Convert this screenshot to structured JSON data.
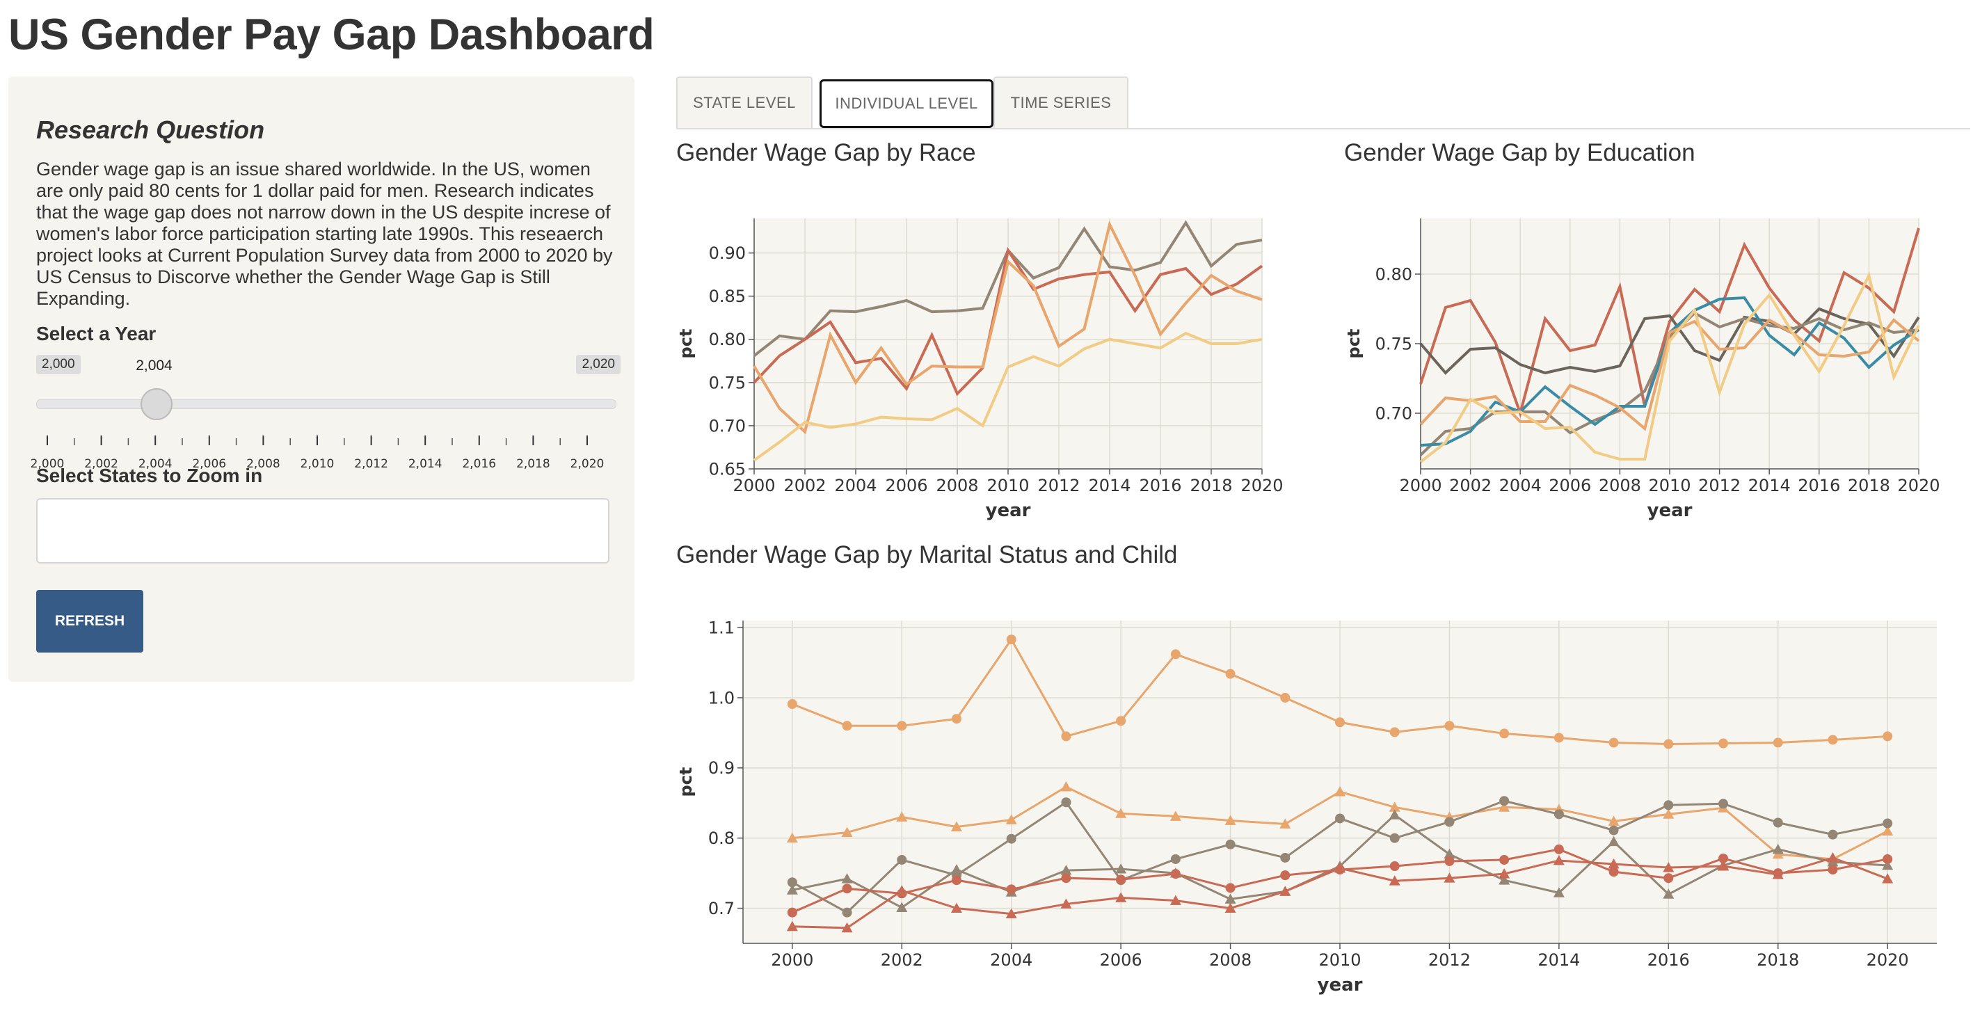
{
  "app": {
    "title": "US Gender Pay Gap Dashboard"
  },
  "sidebar": {
    "heading": "Research Question",
    "text": "Gender wage gap is an issue shared worldwide. In the US, women are only paid 80 cents for 1 dollar paid for men. Research indicates that the wage gap does not narrow down in the US despite increse of women's labor force participation starting late 1990s. This reseaerch project looks at Current Population Survey data from 2000 to 2020 by US Census to Discorve whether the Gender Wage Gap is Still Expanding.",
    "year_label": "Select a Year",
    "slider": {
      "min_label": "2,000",
      "max_label": "2,020",
      "value_label": "2,004",
      "value": 2004,
      "min": 2000,
      "max": 2020,
      "ticks": [
        "2,000",
        "2,002",
        "2,004",
        "2,006",
        "2,008",
        "2,010",
        "2,012",
        "2,014",
        "2,016",
        "2,018",
        "2,020"
      ]
    },
    "states_label": "Select States to Zoom in",
    "states_placeholder": "",
    "refresh_label": "REFRESH"
  },
  "tabs": [
    {
      "label": "STATE LEVEL",
      "active": false
    },
    {
      "label": "INDIVIDUAL LEVEL",
      "active": true
    },
    {
      "label": "TIME SERIES",
      "active": false
    }
  ],
  "colors": {
    "brown_gray": "#938675",
    "red": "#c96a55",
    "orange": "#e8a56c",
    "light_yellow": "#f2cc84",
    "dark_gray": "#6b645a",
    "blue": "#3a8ca6",
    "plot_bg": "#f6f5f0",
    "button": "#365b86"
  },
  "chart_data": [
    {
      "type": "line",
      "title": "Gender Wage Gap by Race",
      "xlabel": "year",
      "ylabel": "pct",
      "x": [
        2000,
        2001,
        2002,
        2003,
        2004,
        2005,
        2006,
        2007,
        2008,
        2009,
        2010,
        2011,
        2012,
        2013,
        2014,
        2015,
        2016,
        2017,
        2018,
        2019,
        2020
      ],
      "xlim": [
        2000,
        2020
      ],
      "ylim": [
        0.65,
        0.94
      ],
      "xticks": [
        2000,
        2002,
        2004,
        2006,
        2008,
        2010,
        2012,
        2014,
        2016,
        2018,
        2020
      ],
      "yticks": [
        0.65,
        0.7,
        0.75,
        0.8,
        0.85,
        0.9
      ],
      "grid": true,
      "legend": "none",
      "series": [
        {
          "color": "#938675",
          "values": [
            0.781,
            0.804,
            0.8,
            0.833,
            0.832,
            0.838,
            0.845,
            0.832,
            0.833,
            0.836,
            0.903,
            0.871,
            0.883,
            0.928,
            0.884,
            0.88,
            0.889,
            0.935,
            0.885,
            0.91,
            0.915
          ]
        },
        {
          "color": "#c96a55",
          "values": [
            0.75,
            0.781,
            0.8,
            0.82,
            0.773,
            0.778,
            0.743,
            0.805,
            0.737,
            0.767,
            0.903,
            0.858,
            0.87,
            0.875,
            0.878,
            0.833,
            0.875,
            0.882,
            0.852,
            0.864,
            0.885
          ]
        },
        {
          "color": "#e8a56c",
          "values": [
            0.769,
            0.72,
            0.693,
            0.805,
            0.75,
            0.79,
            0.748,
            0.769,
            0.768,
            0.768,
            0.89,
            0.862,
            0.792,
            0.812,
            0.933,
            0.874,
            0.806,
            0.842,
            0.874,
            0.856,
            0.846
          ]
        },
        {
          "color": "#f2cc84",
          "values": [
            0.66,
            0.681,
            0.704,
            0.698,
            0.702,
            0.71,
            0.708,
            0.707,
            0.72,
            0.7,
            0.768,
            0.78,
            0.769,
            0.789,
            0.8,
            0.795,
            0.79,
            0.807,
            0.795,
            0.795,
            0.8
          ]
        }
      ]
    },
    {
      "type": "line",
      "title": "Gender Wage Gap by Education",
      "xlabel": "year",
      "ylabel": "pct",
      "x": [
        2000,
        2001,
        2002,
        2003,
        2004,
        2005,
        2006,
        2007,
        2008,
        2009,
        2010,
        2011,
        2012,
        2013,
        2014,
        2015,
        2016,
        2017,
        2018,
        2019,
        2020
      ],
      "xlim": [
        2000,
        2020
      ],
      "ylim": [
        0.66,
        0.84
      ],
      "xticks": [
        2000,
        2002,
        2004,
        2006,
        2008,
        2010,
        2012,
        2014,
        2016,
        2018,
        2020
      ],
      "yticks": [
        0.7,
        0.75,
        0.8
      ],
      "grid": true,
      "legend": "none",
      "series": [
        {
          "color": "#c96a55",
          "values": [
            0.721,
            0.776,
            0.781,
            0.751,
            0.7,
            0.768,
            0.745,
            0.749,
            0.791,
            0.705,
            0.766,
            0.789,
            0.773,
            0.821,
            0.79,
            0.767,
            0.752,
            0.801,
            0.79,
            0.773,
            0.833
          ]
        },
        {
          "color": "#6b645a",
          "values": [
            0.75,
            0.729,
            0.746,
            0.747,
            0.735,
            0.729,
            0.733,
            0.73,
            0.734,
            0.768,
            0.77,
            0.745,
            0.738,
            0.769,
            0.766,
            0.757,
            0.775,
            0.768,
            0.764,
            0.741,
            0.769
          ]
        },
        {
          "color": "#938675",
          "values": [
            0.67,
            0.687,
            0.689,
            0.701,
            0.701,
            0.701,
            0.686,
            0.695,
            0.702,
            0.716,
            0.755,
            0.772,
            0.762,
            0.768,
            0.763,
            0.761,
            0.768,
            0.76,
            0.765,
            0.758,
            0.76
          ]
        },
        {
          "color": "#3a8ca6",
          "values": [
            0.677,
            0.678,
            0.687,
            0.708,
            0.701,
            0.719,
            0.705,
            0.692,
            0.705,
            0.705,
            0.758,
            0.774,
            0.782,
            0.783,
            0.756,
            0.742,
            0.765,
            0.754,
            0.733,
            0.749,
            0.76
          ]
        },
        {
          "color": "#e8a56c",
          "values": [
            0.692,
            0.711,
            0.709,
            0.712,
            0.694,
            0.694,
            0.72,
            0.713,
            0.704,
            0.689,
            0.758,
            0.766,
            0.746,
            0.747,
            0.767,
            0.757,
            0.742,
            0.741,
            0.744,
            0.767,
            0.752
          ]
        },
        {
          "color": "#f2cc84",
          "values": [
            0.665,
            0.679,
            0.71,
            0.7,
            0.701,
            0.689,
            0.69,
            0.672,
            0.667,
            0.667,
            0.752,
            0.774,
            0.715,
            0.764,
            0.785,
            0.756,
            0.73,
            0.763,
            0.799,
            0.726,
            0.763
          ]
        }
      ]
    },
    {
      "type": "line",
      "title": "Gender Wage Gap by Marital Status and Child",
      "xlabel": "year",
      "ylabel": "pct",
      "x": [
        2000,
        2001,
        2002,
        2003,
        2004,
        2005,
        2006,
        2007,
        2008,
        2009,
        2010,
        2011,
        2012,
        2013,
        2014,
        2015,
        2016,
        2017,
        2018,
        2019,
        2020
      ],
      "xlim": [
        1999.1,
        2020.9
      ],
      "ylim": [
        0.65,
        1.11
      ],
      "xticks": [
        2000,
        2002,
        2004,
        2006,
        2008,
        2010,
        2012,
        2014,
        2016,
        2018,
        2020
      ],
      "yticks": [
        0.7,
        0.8,
        0.9,
        1.0,
        1.1
      ],
      "grid": true,
      "legend": "none",
      "series": [
        {
          "color": "#e8a56c",
          "marker": "circle",
          "values": [
            0.991,
            0.96,
            0.96,
            0.97,
            1.083,
            0.945,
            0.967,
            1.062,
            1.034,
            1.0,
            0.965,
            0.951,
            0.96,
            0.949,
            0.943,
            0.936,
            0.934,
            0.935,
            0.936,
            0.94,
            0.945
          ]
        },
        {
          "color": "#e8a56c",
          "marker": "triangle",
          "values": [
            0.8,
            0.808,
            0.83,
            0.816,
            0.826,
            0.873,
            0.835,
            0.831,
            0.825,
            0.82,
            0.866,
            0.844,
            0.83,
            0.844,
            0.841,
            0.824,
            0.834,
            0.843,
            0.777,
            0.77,
            0.81
          ]
        },
        {
          "color": "#938675",
          "marker": "circle",
          "values": [
            0.737,
            0.694,
            0.769,
            0.747,
            0.799,
            0.851,
            0.74,
            0.77,
            0.791,
            0.772,
            0.828,
            0.8,
            0.823,
            0.853,
            0.834,
            0.811,
            0.847,
            0.849,
            0.822,
            0.805,
            0.821
          ]
        },
        {
          "color": "#938675",
          "marker": "triangle",
          "values": [
            0.726,
            0.742,
            0.701,
            0.755,
            0.723,
            0.754,
            0.756,
            0.75,
            0.713,
            0.724,
            0.76,
            0.833,
            0.777,
            0.74,
            0.722,
            0.795,
            0.72,
            0.761,
            0.784,
            0.766,
            0.761
          ]
        },
        {
          "color": "#c96a55",
          "marker": "circle",
          "values": [
            0.694,
            0.728,
            0.721,
            0.74,
            0.727,
            0.743,
            0.741,
            0.749,
            0.729,
            0.747,
            0.755,
            0.76,
            0.767,
            0.769,
            0.784,
            0.752,
            0.743,
            0.771,
            0.75,
            0.755,
            0.77
          ]
        },
        {
          "color": "#c96a55",
          "marker": "triangle",
          "values": [
            0.674,
            0.672,
            0.725,
            0.7,
            0.692,
            0.706,
            0.715,
            0.711,
            0.7,
            0.724,
            0.757,
            0.739,
            0.743,
            0.749,
            0.768,
            0.763,
            0.758,
            0.76,
            0.748,
            0.772,
            0.742
          ]
        }
      ]
    }
  ]
}
